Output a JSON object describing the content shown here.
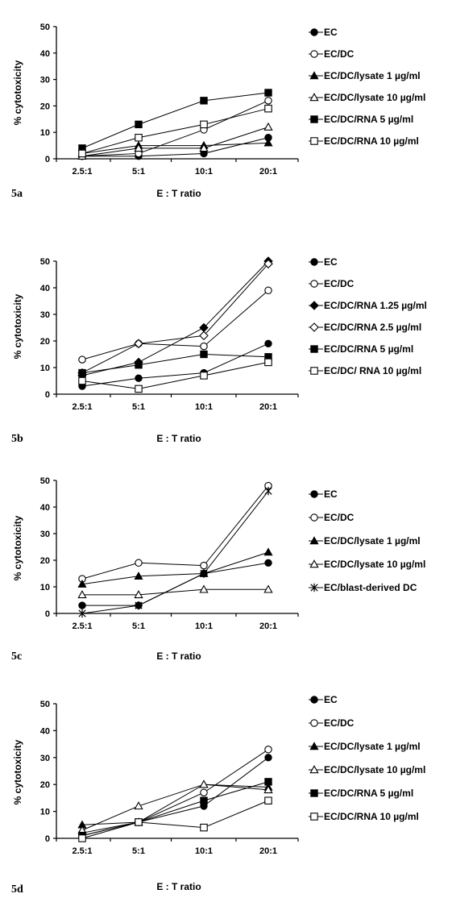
{
  "chart_data": [
    {
      "type": "line",
      "panel_label": "5a",
      "xlabel": "E : T ratio",
      "ylabel": "% cytotoxicity",
      "categories": [
        "2.5:1",
        "5:1",
        "10:1",
        "20:1"
      ],
      "ylim": [
        0,
        50
      ],
      "yticks": [
        "0",
        "10",
        "20",
        "30",
        "40",
        "50"
      ],
      "grid": false,
      "legend": "right",
      "series": [
        {
          "name": "EC",
          "marker": "filled-circle",
          "values": [
            1,
            1,
            2,
            8
          ]
        },
        {
          "name": "EC/DC",
          "marker": "open-circle",
          "values": [
            1,
            2,
            11,
            22
          ]
        },
        {
          "name": "EC/DC/lysate 1 µg/ml",
          "marker": "filled-triangle",
          "values": [
            2,
            5,
            5,
            6
          ]
        },
        {
          "name": "EC/DC/lysate 10 µg/ml",
          "marker": "open-triangle",
          "values": [
            1,
            4,
            4,
            12
          ]
        },
        {
          "name": "EC/DC/RNA 5 µg/ml",
          "marker": "filled-square",
          "values": [
            4,
            13,
            22,
            25
          ]
        },
        {
          "name": "EC/DC/RNA 10 µg/ml",
          "marker": "open-square",
          "values": [
            2,
            8,
            13,
            19
          ]
        }
      ]
    },
    {
      "type": "line",
      "panel_label": "5b",
      "xlabel": "E : T ratio",
      "ylabel": "% cytotoxicity",
      "categories": [
        "2.5:1",
        "5:1",
        "10:1",
        "20:1"
      ],
      "ylim": [
        0,
        50
      ],
      "yticks": [
        "0",
        "10",
        "20",
        "30",
        "40",
        "50"
      ],
      "grid": false,
      "legend": "right",
      "series": [
        {
          "name": "EC",
          "marker": "filled-circle",
          "values": [
            3,
            6,
            8,
            19
          ]
        },
        {
          "name": "EC/DC",
          "marker": "open-circle",
          "values": [
            13,
            19,
            18,
            39
          ]
        },
        {
          "name": "EC/DC/RNA 1.25 µg/ml",
          "marker": "filled-diamond",
          "values": [
            7,
            12,
            25,
            50
          ]
        },
        {
          "name": "EC/DC/RNA 2.5 µg/ml",
          "marker": "open-diamond",
          "values": [
            8,
            19,
            22,
            49
          ]
        },
        {
          "name": "EC/DC/RNA 5 µg/ml",
          "marker": "filled-square",
          "values": [
            8,
            11,
            15,
            14
          ]
        },
        {
          "name": "EC/DC/ RNA 10 µg/ml",
          "marker": "open-square",
          "values": [
            5,
            2,
            7,
            12
          ]
        }
      ]
    },
    {
      "type": "line",
      "panel_label": "5c",
      "xlabel": "E : T ratio",
      "ylabel": "% cytotoxicity",
      "categories": [
        "2.5:1",
        "5:1",
        "10:1",
        "20:1"
      ],
      "ylim": [
        0,
        50
      ],
      "yticks": [
        "0",
        "10",
        "20",
        "30",
        "40",
        "50"
      ],
      "grid": false,
      "legend": "right",
      "series": [
        {
          "name": "EC",
          "marker": "filled-circle",
          "values": [
            3,
            3,
            15,
            19
          ]
        },
        {
          "name": "EC/DC",
          "marker": "open-circle",
          "values": [
            13,
            19,
            18,
            48
          ]
        },
        {
          "name": "EC/DC/lysate 1 µg/ml",
          "marker": "filled-triangle",
          "values": [
            11,
            14,
            15,
            23
          ]
        },
        {
          "name": "EC/DC/lysate 10 µg/ml",
          "marker": "open-triangle",
          "values": [
            7,
            7,
            9,
            9
          ]
        },
        {
          "name": "EC/blast-derived DC",
          "marker": "asterisk",
          "values": [
            0,
            3,
            15,
            46
          ]
        }
      ]
    },
    {
      "type": "line",
      "panel_label": "5d",
      "xlabel": "E : T ratio",
      "ylabel": "% cytotoxicity",
      "categories": [
        "2.5:1",
        "5:1",
        "10:1",
        "20:1"
      ],
      "ylim": [
        0,
        50
      ],
      "yticks": [
        "0",
        "10",
        "20",
        "30",
        "40",
        "50"
      ],
      "grid": false,
      "legend": "right",
      "series": [
        {
          "name": "EC",
          "marker": "filled-circle",
          "values": [
            2,
            6,
            12,
            30
          ]
        },
        {
          "name": "EC/DC",
          "marker": "open-circle",
          "values": [
            1,
            6,
            17,
            33
          ]
        },
        {
          "name": "EC/DC/lysate 1 µg/ml",
          "marker": "filled-triangle",
          "values": [
            5,
            6,
            20,
            19
          ]
        },
        {
          "name": "EC/DC/lysate 10 µg/ml",
          "marker": "open-triangle",
          "values": [
            3,
            12,
            20,
            18
          ]
        },
        {
          "name": "EC/DC/RNA 5 µg/ml",
          "marker": "filled-square",
          "values": [
            1,
            6,
            14,
            21
          ]
        },
        {
          "name": "EC/DC/RNA 10 µg/ml",
          "marker": "open-square",
          "values": [
            0,
            6,
            4,
            14
          ]
        }
      ]
    }
  ]
}
